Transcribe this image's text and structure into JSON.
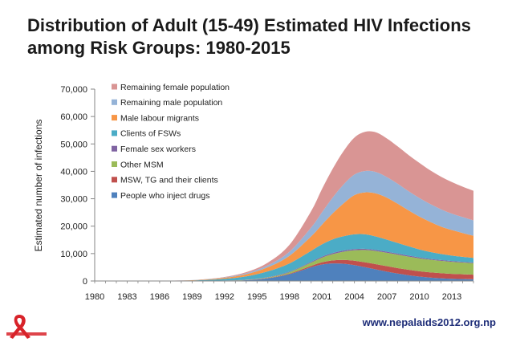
{
  "slide": {
    "title_line1": "Distribution of Adult (15-49) Estimated HIV Infections",
    "title_line2": "among Risk Groups: 1980-2015",
    "footer_url": "www.nepalaids2012.org.np"
  },
  "chart_data": {
    "type": "area",
    "stacked": true,
    "title": "Distribution of Adult (15-49) Estimated HIV Infections among Risk Groups: 1980-2015",
    "xlabel": "",
    "ylabel": "Estimated number of infections",
    "xlim": [
      1980,
      2015
    ],
    "ylim": [
      0,
      70000
    ],
    "yticks": [
      0,
      10000,
      20000,
      30000,
      40000,
      50000,
      60000,
      70000
    ],
    "ytick_labels": [
      "0",
      "10,000",
      "20,000",
      "30,000",
      "40,000",
      "50,000",
      "60,000",
      "70,000"
    ],
    "xticks": [
      1980,
      1983,
      1986,
      1989,
      1992,
      1995,
      1998,
      2001,
      2004,
      2007,
      2010,
      2013
    ],
    "xtick_labels": [
      "1980",
      "1983",
      "1986",
      "1989",
      "1992",
      "1995",
      "1998",
      "2001",
      "2004",
      "2007",
      "2010",
      "2013"
    ],
    "legend_position": "top-left",
    "x": [
      1980,
      1982,
      1984,
      1986,
      1988,
      1990,
      1992,
      1994,
      1996,
      1998,
      2000,
      2001,
      2002,
      2003,
      2004,
      2005,
      2006,
      2007,
      2008,
      2009,
      2010,
      2011,
      2012,
      2013,
      2014,
      2015
    ],
    "series": [
      {
        "name": "People who inject drugs",
        "color": "#4f81bd",
        "values": [
          0,
          0,
          0,
          10,
          30,
          60,
          100,
          300,
          1000,
          2500,
          5000,
          6000,
          6400,
          6300,
          5800,
          5000,
          4200,
          3400,
          2700,
          2100,
          1600,
          1250,
          1000,
          800,
          700,
          600
        ]
      },
      {
        "name": "MSW, TG and their clients",
        "color": "#c0504d",
        "values": [
          0,
          0,
          0,
          0,
          0,
          0,
          10,
          30,
          80,
          200,
          500,
          800,
          1100,
          1400,
          1600,
          1800,
          1900,
          2000,
          2000,
          2000,
          1950,
          1900,
          1850,
          1800,
          1750,
          1700
        ]
      },
      {
        "name": "Other MSM",
        "color": "#9bbb59",
        "values": [
          0,
          0,
          0,
          0,
          0,
          10,
          30,
          80,
          200,
          500,
          1200,
          1700,
          2300,
          3000,
          3800,
          4500,
          4800,
          4900,
          4900,
          4800,
          4700,
          4600,
          4500,
          4400,
          4300,
          4200
        ]
      },
      {
        "name": "Female sex workers",
        "color": "#8064a2",
        "values": [
          0,
          0,
          0,
          0,
          5,
          10,
          30,
          60,
          120,
          200,
          300,
          350,
          400,
          420,
          430,
          430,
          420,
          400,
          380,
          360,
          340,
          320,
          300,
          280,
          260,
          250
        ]
      },
      {
        "name": "Clients of FSWs",
        "color": "#4bacc6",
        "values": [
          0,
          0,
          0,
          20,
          80,
          250,
          600,
          1200,
          2100,
          3000,
          4000,
          4500,
          5000,
          5200,
          5400,
          5300,
          4900,
          4400,
          3900,
          3400,
          2900,
          2500,
          2200,
          2000,
          1800,
          1650
        ]
      },
      {
        "name": "Male labour migrants",
        "color": "#f79646",
        "values": [
          0,
          0,
          0,
          10,
          50,
          150,
          400,
          800,
          1500,
          2800,
          5300,
          7200,
          9500,
          12000,
          14300,
          15300,
          15700,
          15300,
          14300,
          13100,
          12000,
          11000,
          10000,
          9300,
          8700,
          8100
        ]
      },
      {
        "name": "Remaining male population",
        "color": "#95b3d7",
        "values": [
          0,
          0,
          0,
          5,
          20,
          60,
          150,
          350,
          700,
          1500,
          3200,
          4500,
          5800,
          6900,
          7500,
          7800,
          7800,
          7500,
          7300,
          7000,
          6800,
          6500,
          6300,
          6000,
          5800,
          5600
        ]
      },
      {
        "name": "Remaining female population",
        "color": "#d99594",
        "values": [
          0,
          0,
          0,
          5,
          20,
          60,
          150,
          400,
          1000,
          2500,
          6000,
          8500,
          10500,
          12200,
          13500,
          14300,
          14500,
          14100,
          13600,
          13200,
          12800,
          12300,
          11900,
          11500,
          11100,
          10800
        ]
      }
    ]
  }
}
